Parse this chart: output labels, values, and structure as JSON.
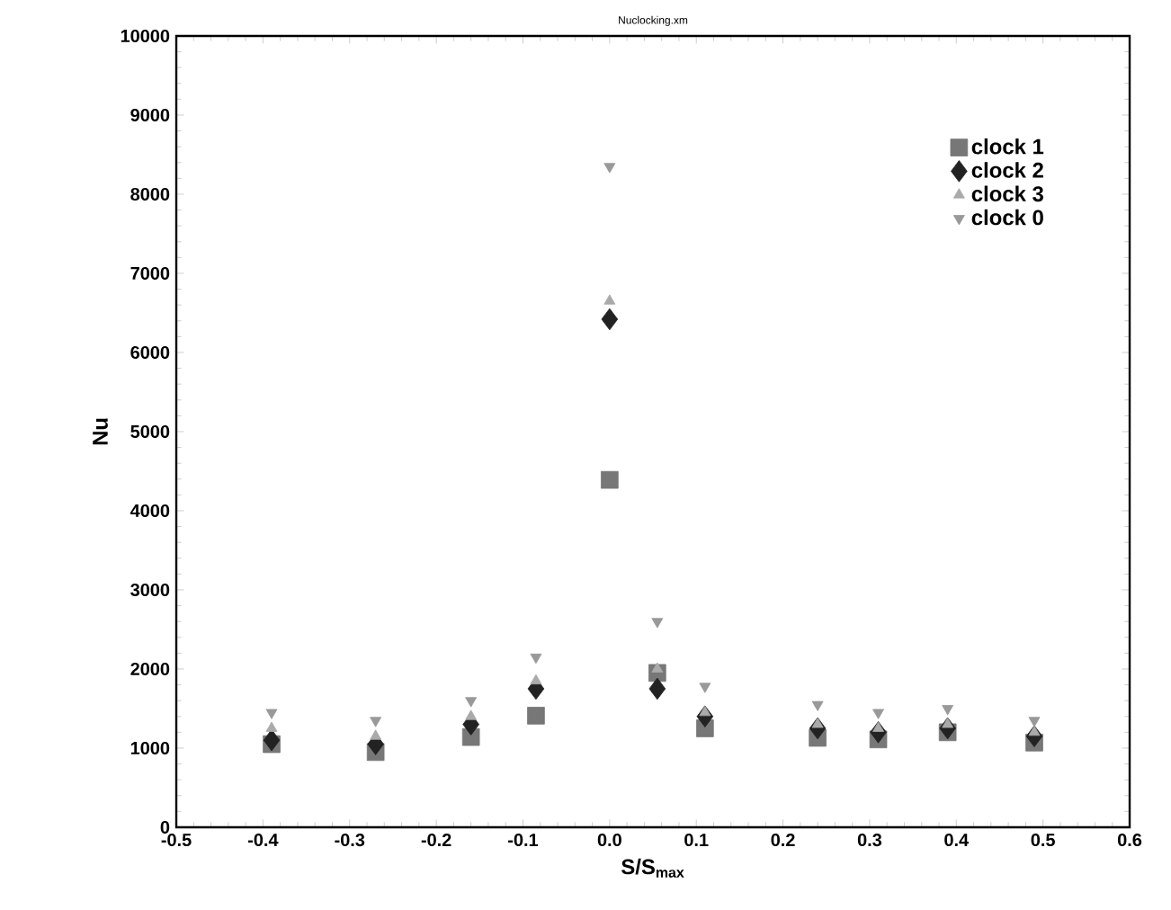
{
  "chart_data": {
    "type": "scatter",
    "title": "Nuclocking.xm",
    "xlabel": "S/S$_{max}$",
    "ylabel": "Nu",
    "xlim": [
      -0.5,
      0.6
    ],
    "xticks": [
      -0.5,
      -0.4,
      -0.3,
      -0.2,
      -0.1,
      {
        "value": 0,
        "label": "0.0"
      },
      0.1,
      0.2,
      0.3,
      0.4,
      0.5,
      0.6
    ],
    "ylim": [
      0,
      10000
    ],
    "yticks": [
      0,
      1000,
      2000,
      3000,
      4000,
      5000,
      6000,
      7000,
      8000,
      9000,
      10000
    ],
    "x": [
      -0.39,
      -0.27,
      -0.16,
      -0.085,
      0,
      0.055,
      0.11,
      0.24,
      0.31,
      0.39,
      0.49
    ],
    "legend": "top right",
    "grid": false,
    "series": [
      {
        "name": "clock 1",
        "color": "#777777",
        "marker": "square",
        "values": [
          1050,
          950,
          1140,
          1410,
          4390,
          1950,
          1250,
          1130,
          1110,
          1200,
          1070
        ]
      },
      {
        "name": "clock 2",
        "color": "#222222",
        "marker": "diamond",
        "values": [
          1100,
          1050,
          1300,
          1750,
          6420,
          1750,
          1400,
          1250,
          1200,
          1250,
          1150
        ]
      },
      {
        "name": "clock 3",
        "color": "#aaaaaa",
        "marker": "triangle",
        "values": [
          1250,
          1150,
          1400,
          1850,
          6650,
          2000,
          1450,
          1300,
          1250,
          1300,
          1200
        ]
      },
      {
        "name": "clock 0",
        "color": "#999999",
        "marker": "triangle-down",
        "values": [
          1450,
          1350,
          1600,
          2150,
          8350,
          2600,
          1780,
          1550,
          1450,
          1500,
          1350
        ]
      }
    ]
  }
}
